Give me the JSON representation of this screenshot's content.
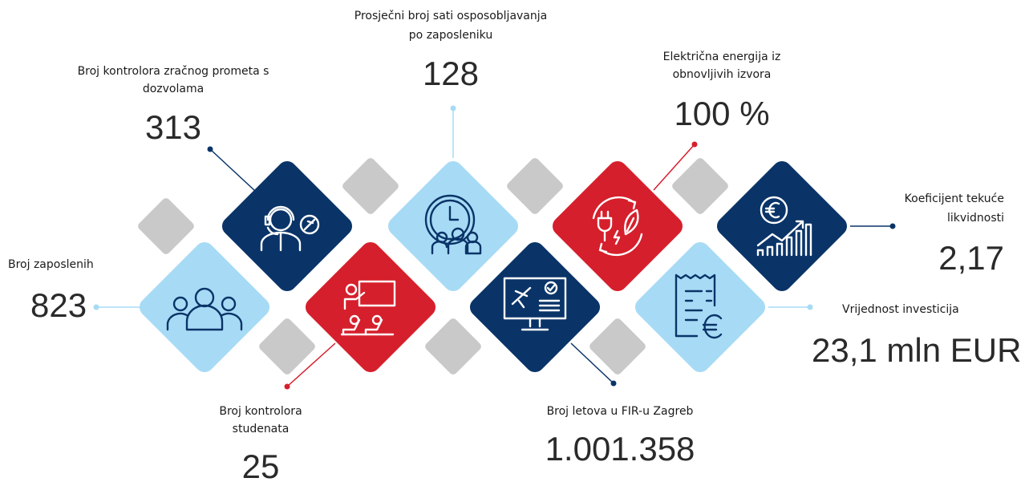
{
  "items": [
    {
      "label": [
        "Broj zaposlenih"
      ],
      "value": "823"
    },
    {
      "label": [
        "Broj kontrolora zračnog prometa s",
        "dozvolama"
      ],
      "value": "313"
    },
    {
      "label": [
        "Broj kontrolora",
        "studenata"
      ],
      "value": "25"
    },
    {
      "label": [
        "Prosječni broj sati osposobljavanja",
        "po zaposleniku"
      ],
      "value": "128"
    },
    {
      "label": [
        "Broj letova u FIR-u Zagreb"
      ],
      "value": "1.001.358"
    },
    {
      "label": [
        "Električna energija iz",
        "obnovljivih izvora"
      ],
      "value": "100 %"
    },
    {
      "label": [
        "Vrijednost investicija"
      ],
      "value": "23,1 mln EUR"
    },
    {
      "label": [
        "Koeficijent tekuće",
        "likvidnosti"
      ],
      "value": "2,17"
    }
  ]
}
